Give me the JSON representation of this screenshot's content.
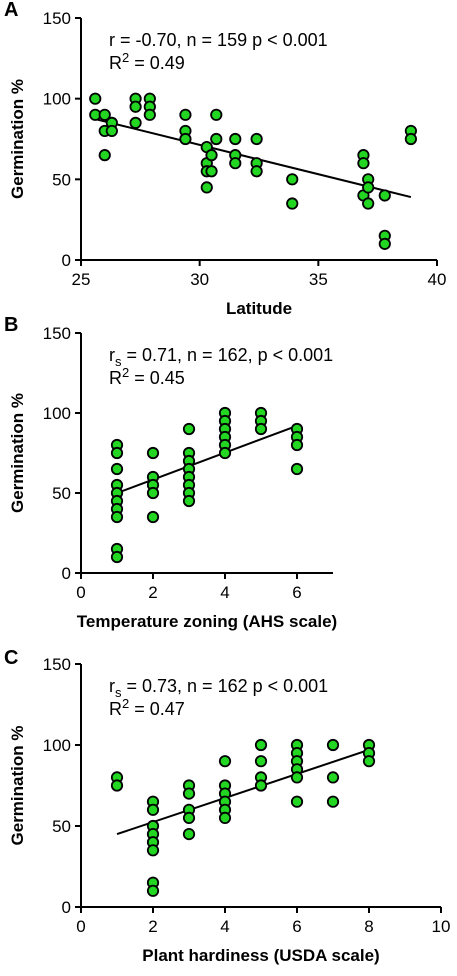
{
  "chart_data": [
    {
      "panel": "A",
      "type": "scatter",
      "annotation": {
        "line1": "r = -0.70, n = 159 p < 0.001",
        "r2_base": "R",
        "r2_exp": "2",
        "r2_rest": " = 0.49"
      },
      "xlabel": "Latitude",
      "ylabel": "Germination %",
      "xlim": [
        25,
        40
      ],
      "ylim": [
        0,
        150
      ],
      "xticks": [
        25,
        30,
        35,
        40
      ],
      "yticks": [
        0,
        50,
        100,
        150
      ],
      "points": [
        [
          25.6,
          100
        ],
        [
          25.6,
          90
        ],
        [
          26.0,
          90
        ],
        [
          26.0,
          80
        ],
        [
          26.0,
          65
        ],
        [
          26.3,
          85
        ],
        [
          26.3,
          80
        ],
        [
          27.3,
          100
        ],
        [
          27.3,
          95
        ],
        [
          27.3,
          85
        ],
        [
          27.9,
          100
        ],
        [
          27.9,
          95
        ],
        [
          27.9,
          90
        ],
        [
          29.4,
          90
        ],
        [
          29.4,
          80
        ],
        [
          29.4,
          75
        ],
        [
          30.3,
          70
        ],
        [
          30.3,
          60
        ],
        [
          30.3,
          55
        ],
        [
          30.3,
          45
        ],
        [
          30.5,
          65
        ],
        [
          30.5,
          55
        ],
        [
          30.7,
          90
        ],
        [
          30.7,
          75
        ],
        [
          31.5,
          75
        ],
        [
          31.5,
          65
        ],
        [
          31.5,
          60
        ],
        [
          32.4,
          75
        ],
        [
          32.4,
          60
        ],
        [
          32.4,
          55
        ],
        [
          33.9,
          50
        ],
        [
          33.9,
          35
        ],
        [
          36.9,
          65
        ],
        [
          36.9,
          60
        ],
        [
          36.9,
          40
        ],
        [
          37.1,
          50
        ],
        [
          37.1,
          45
        ],
        [
          37.1,
          35
        ],
        [
          37.8,
          40
        ],
        [
          37.8,
          15
        ],
        [
          37.8,
          10
        ],
        [
          38.9,
          80
        ],
        [
          38.9,
          75
        ]
      ],
      "fit": [
        [
          25.7,
          87
        ],
        [
          38.9,
          39
        ]
      ]
    },
    {
      "panel": "B",
      "type": "scatter",
      "annotation": {
        "line1_base": "r",
        "line1_sub": "s",
        "line1_rest": " = 0.71, n = 162, p < 0.001",
        "r2_base": "R",
        "r2_exp": "2",
        "r2_rest": " = 0.45"
      },
      "xlabel": "Temperature zoning (AHS scale)",
      "ylabel": "Germination %",
      "xlim": [
        0,
        7
      ],
      "ylim": [
        0,
        150
      ],
      "xticks": [
        0,
        2,
        4,
        6
      ],
      "yticks": [
        0,
        50,
        100,
        150
      ],
      "points": [
        [
          1,
          80
        ],
        [
          1,
          75
        ],
        [
          1,
          65
        ],
        [
          1,
          55
        ],
        [
          1,
          50
        ],
        [
          1,
          45
        ],
        [
          1,
          40
        ],
        [
          1,
          35
        ],
        [
          1,
          15
        ],
        [
          1,
          10
        ],
        [
          2,
          75
        ],
        [
          2,
          60
        ],
        [
          2,
          55
        ],
        [
          2,
          50
        ],
        [
          2,
          35
        ],
        [
          3,
          90
        ],
        [
          3,
          75
        ],
        [
          3,
          70
        ],
        [
          3,
          65
        ],
        [
          3,
          60
        ],
        [
          3,
          55
        ],
        [
          3,
          50
        ],
        [
          3,
          45
        ],
        [
          4,
          100
        ],
        [
          4,
          95
        ],
        [
          4,
          90
        ],
        [
          4,
          85
        ],
        [
          4,
          80
        ],
        [
          4,
          75
        ],
        [
          5,
          100
        ],
        [
          5,
          95
        ],
        [
          5,
          90
        ],
        [
          6,
          90
        ],
        [
          6,
          85
        ],
        [
          6,
          80
        ],
        [
          6,
          65
        ]
      ],
      "fit": [
        [
          1,
          50
        ],
        [
          6,
          92
        ]
      ]
    },
    {
      "panel": "C",
      "type": "scatter",
      "annotation": {
        "line1_base": "r",
        "line1_sub": "s",
        "line1_rest": " = 0.73, n = 162 p < 0.001",
        "r2_base": "R",
        "r2_exp": "2",
        "r2_rest": " = 0.47"
      },
      "xlabel": "Plant hardiness (USDA scale)",
      "ylabel": "Germination %",
      "xlim": [
        0,
        10
      ],
      "ylim": [
        0,
        150
      ],
      "xticks": [
        0,
        2,
        4,
        6,
        8,
        10
      ],
      "yticks": [
        0,
        50,
        100,
        150
      ],
      "points": [
        [
          1,
          80
        ],
        [
          1,
          75
        ],
        [
          2,
          65
        ],
        [
          2,
          60
        ],
        [
          2,
          50
        ],
        [
          2,
          45
        ],
        [
          2,
          40
        ],
        [
          2,
          35
        ],
        [
          2,
          15
        ],
        [
          2,
          10
        ],
        [
          3,
          75
        ],
        [
          3,
          70
        ],
        [
          3,
          60
        ],
        [
          3,
          55
        ],
        [
          3,
          45
        ],
        [
          4,
          90
        ],
        [
          4,
          75
        ],
        [
          4,
          70
        ],
        [
          4,
          65
        ],
        [
          4,
          60
        ],
        [
          4,
          55
        ],
        [
          5,
          100
        ],
        [
          5,
          90
        ],
        [
          5,
          80
        ],
        [
          5,
          75
        ],
        [
          6,
          100
        ],
        [
          6,
          95
        ],
        [
          6,
          90
        ],
        [
          6,
          85
        ],
        [
          6,
          80
        ],
        [
          6,
          65
        ],
        [
          7,
          100
        ],
        [
          7,
          80
        ],
        [
          7,
          65
        ],
        [
          8,
          100
        ],
        [
          8,
          95
        ],
        [
          8,
          90
        ]
      ],
      "fit": [
        [
          1,
          45
        ],
        [
          8,
          97
        ]
      ]
    }
  ],
  "style": {
    "point_fill": "#22d622",
    "point_stroke": "#000000",
    "line_color": "#000000",
    "axis_color": "#000000"
  }
}
